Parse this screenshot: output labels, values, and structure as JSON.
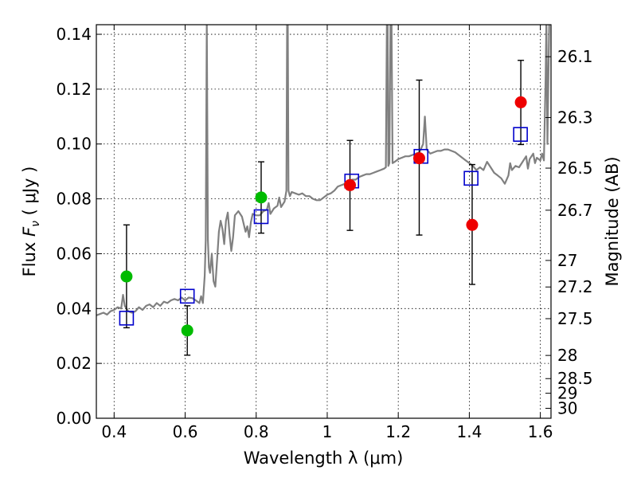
{
  "chart_data": {
    "type": "scatter",
    "title": "",
    "xlabel": "Wavelength  λ (μm)",
    "ylabel_prefix": "Flux  ",
    "ylabel_symbol": "F",
    "ylabel_sub": "ν",
    "ylabel_suffix": "  ( μJy )",
    "ylabel_right": "Magnitude (AB)",
    "xlim": [
      0.35,
      1.63
    ],
    "ylim": [
      0.0,
      0.1435
    ],
    "grid": true,
    "x_ticks": [
      {
        "v": 0.4,
        "label": "0.4"
      },
      {
        "v": 0.6,
        "label": "0.6"
      },
      {
        "v": 0.8,
        "label": "0.8"
      },
      {
        "v": 1.0,
        "label": "1"
      },
      {
        "v": 1.2,
        "label": "1.2"
      },
      {
        "v": 1.4,
        "label": "1.4"
      },
      {
        "v": 1.6,
        "label": "1.6"
      }
    ],
    "y_ticks": [
      {
        "v": 0.0,
        "label": "0.00"
      },
      {
        "v": 0.02,
        "label": "0.02"
      },
      {
        "v": 0.04,
        "label": "0.04"
      },
      {
        "v": 0.06,
        "label": "0.06"
      },
      {
        "v": 0.08,
        "label": "0.08"
      },
      {
        "v": 0.1,
        "label": "0.10"
      },
      {
        "v": 0.12,
        "label": "0.12"
      },
      {
        "v": 0.14,
        "label": "0.14"
      }
    ],
    "mag_ticks": [
      {
        "mag": 26.1,
        "label": "26.1"
      },
      {
        "mag": 26.3,
        "label": "26.3"
      },
      {
        "mag": 26.5,
        "label": "26.5"
      },
      {
        "mag": 26.7,
        "label": "26.7"
      },
      {
        "mag": 27.0,
        "label": "27"
      },
      {
        "mag": 27.2,
        "label": "27.2"
      },
      {
        "mag": 27.5,
        "label": "27.5"
      },
      {
        "mag": 28.0,
        "label": "28"
      },
      {
        "mag": 28.5,
        "label": "28.5"
      },
      {
        "mag": 29.0,
        "label": "29"
      },
      {
        "mag": 30.0,
        "label": "30"
      }
    ],
    "model_spectrum": {
      "color": "#808080",
      "points": [
        [
          0.35,
          0.0375
        ],
        [
          0.36,
          0.038
        ],
        [
          0.37,
          0.0385
        ],
        [
          0.38,
          0.0378
        ],
        [
          0.39,
          0.039
        ],
        [
          0.4,
          0.0395
        ],
        [
          0.41,
          0.0405
        ],
        [
          0.42,
          0.04
        ],
        [
          0.425,
          0.045
        ],
        [
          0.43,
          0.041
        ],
        [
          0.44,
          0.039
        ],
        [
          0.45,
          0.0385
        ],
        [
          0.46,
          0.039
        ],
        [
          0.47,
          0.0405
        ],
        [
          0.48,
          0.0395
        ],
        [
          0.49,
          0.041
        ],
        [
          0.5,
          0.0415
        ],
        [
          0.51,
          0.0405
        ],
        [
          0.52,
          0.042
        ],
        [
          0.53,
          0.041
        ],
        [
          0.54,
          0.0425
        ],
        [
          0.55,
          0.042
        ],
        [
          0.56,
          0.043
        ],
        [
          0.57,
          0.0435
        ],
        [
          0.58,
          0.043
        ],
        [
          0.59,
          0.044
        ],
        [
          0.6,
          0.043
        ],
        [
          0.61,
          0.044
        ],
        [
          0.62,
          0.0438
        ],
        [
          0.63,
          0.043
        ],
        [
          0.64,
          0.042
        ],
        [
          0.645,
          0.0445
        ],
        [
          0.65,
          0.042
        ],
        [
          0.655,
          0.052
        ],
        [
          0.658,
          0.065
        ],
        [
          0.661,
          0.145
        ],
        [
          0.664,
          0.065
        ],
        [
          0.667,
          0.055
        ],
        [
          0.67,
          0.053
        ],
        [
          0.675,
          0.06
        ],
        [
          0.68,
          0.05
        ],
        [
          0.685,
          0.048
        ],
        [
          0.69,
          0.058
        ],
        [
          0.695,
          0.068
        ],
        [
          0.7,
          0.072
        ],
        [
          0.705,
          0.069
        ],
        [
          0.71,
          0.0635
        ],
        [
          0.715,
          0.072
        ],
        [
          0.72,
          0.075
        ],
        [
          0.725,
          0.067
        ],
        [
          0.73,
          0.061
        ],
        [
          0.735,
          0.066
        ],
        [
          0.74,
          0.074
        ],
        [
          0.75,
          0.0755
        ],
        [
          0.76,
          0.0735
        ],
        [
          0.77,
          0.068
        ],
        [
          0.775,
          0.07
        ],
        [
          0.78,
          0.066
        ],
        [
          0.785,
          0.0715
        ],
        [
          0.79,
          0.0745
        ],
        [
          0.8,
          0.074
        ],
        [
          0.81,
          0.074
        ],
        [
          0.82,
          0.0755
        ],
        [
          0.83,
          0.076
        ],
        [
          0.835,
          0.0785
        ],
        [
          0.84,
          0.0745
        ],
        [
          0.85,
          0.0765
        ],
        [
          0.86,
          0.0775
        ],
        [
          0.865,
          0.0805
        ],
        [
          0.87,
          0.077
        ],
        [
          0.88,
          0.079
        ],
        [
          0.885,
          0.083
        ],
        [
          0.887,
          0.145
        ],
        [
          0.889,
          0.145
        ],
        [
          0.891,
          0.083
        ],
        [
          0.895,
          0.081
        ],
        [
          0.9,
          0.0825
        ],
        [
          0.91,
          0.082
        ],
        [
          0.92,
          0.0815
        ],
        [
          0.93,
          0.082
        ],
        [
          0.94,
          0.081
        ],
        [
          0.95,
          0.081
        ],
        [
          0.96,
          0.08
        ],
        [
          0.97,
          0.0795
        ],
        [
          0.98,
          0.0795
        ],
        [
          0.99,
          0.0805
        ],
        [
          1.0,
          0.0815
        ],
        [
          1.01,
          0.082
        ],
        [
          1.02,
          0.083
        ],
        [
          1.03,
          0.0845
        ],
        [
          1.04,
          0.085
        ],
        [
          1.05,
          0.0855
        ],
        [
          1.06,
          0.0865
        ],
        [
          1.07,
          0.087
        ],
        [
          1.08,
          0.087
        ],
        [
          1.09,
          0.088
        ],
        [
          1.1,
          0.0885
        ],
        [
          1.11,
          0.089
        ],
        [
          1.12,
          0.089
        ],
        [
          1.13,
          0.0895
        ],
        [
          1.14,
          0.09
        ],
        [
          1.15,
          0.0905
        ],
        [
          1.16,
          0.091
        ],
        [
          1.165,
          0.0915
        ],
        [
          1.168,
          0.145
        ],
        [
          1.17,
          0.145
        ],
        [
          1.172,
          0.092
        ],
        [
          1.175,
          0.093
        ],
        [
          1.178,
          0.145
        ],
        [
          1.181,
          0.145
        ],
        [
          1.184,
          0.093
        ],
        [
          1.19,
          0.0935
        ],
        [
          1.2,
          0.0945
        ],
        [
          1.21,
          0.095
        ],
        [
          1.22,
          0.0955
        ],
        [
          1.23,
          0.0955
        ],
        [
          1.24,
          0.096
        ],
        [
          1.25,
          0.0965
        ],
        [
          1.26,
          0.097
        ],
        [
          1.27,
          0.1
        ],
        [
          1.275,
          0.11
        ],
        [
          1.28,
          0.098
        ],
        [
          1.29,
          0.0965
        ],
        [
          1.3,
          0.097
        ],
        [
          1.31,
          0.0975
        ],
        [
          1.32,
          0.0975
        ],
        [
          1.33,
          0.098
        ],
        [
          1.34,
          0.098
        ],
        [
          1.35,
          0.0975
        ],
        [
          1.36,
          0.097
        ],
        [
          1.37,
          0.096
        ],
        [
          1.38,
          0.095
        ],
        [
          1.39,
          0.094
        ],
        [
          1.4,
          0.093
        ],
        [
          1.41,
          0.092
        ],
        [
          1.42,
          0.0905
        ],
        [
          1.43,
          0.0915
        ],
        [
          1.44,
          0.0905
        ],
        [
          1.45,
          0.0935
        ],
        [
          1.46,
          0.0915
        ],
        [
          1.47,
          0.0895
        ],
        [
          1.48,
          0.0885
        ],
        [
          1.49,
          0.0875
        ],
        [
          1.5,
          0.0855
        ],
        [
          1.51,
          0.0885
        ],
        [
          1.515,
          0.093
        ],
        [
          1.52,
          0.0905
        ],
        [
          1.53,
          0.092
        ],
        [
          1.54,
          0.0915
        ],
        [
          1.55,
          0.0935
        ],
        [
          1.56,
          0.0955
        ],
        [
          1.565,
          0.091
        ],
        [
          1.57,
          0.0945
        ],
        [
          1.58,
          0.0965
        ],
        [
          1.585,
          0.093
        ],
        [
          1.59,
          0.095
        ],
        [
          1.6,
          0.094
        ],
        [
          1.605,
          0.0965
        ],
        [
          1.61,
          0.094
        ],
        [
          1.615,
          0.125
        ],
        [
          1.617,
          0.145
        ],
        [
          1.62,
          0.1
        ],
        [
          1.625,
          0.145
        ],
        [
          1.63,
          0.145
        ]
      ]
    },
    "model_boxes": {
      "color": "#0000cc",
      "points": [
        {
          "x": 0.435,
          "y": 0.0365
        },
        {
          "x": 0.606,
          "y": 0.0445
        },
        {
          "x": 0.814,
          "y": 0.0735
        },
        {
          "x": 1.069,
          "y": 0.0865
        },
        {
          "x": 1.264,
          "y": 0.0955
        },
        {
          "x": 1.405,
          "y": 0.0875
        },
        {
          "x": 1.544,
          "y": 0.1035
        }
      ]
    },
    "observed_optical": {
      "color": "#00bb00",
      "points": [
        {
          "x": 0.435,
          "y": 0.0517,
          "ylo": 0.033,
          "yhi": 0.0705
        },
        {
          "x": 0.606,
          "y": 0.032,
          "ylo": 0.023,
          "yhi": 0.041
        },
        {
          "x": 0.814,
          "y": 0.0805,
          "ylo": 0.0675,
          "yhi": 0.0935
        }
      ]
    },
    "observed_nir": {
      "color": "#ee0000",
      "points": [
        {
          "x": 1.064,
          "y": 0.085,
          "ylo": 0.0685,
          "yhi": 0.1013
        },
        {
          "x": 1.259,
          "y": 0.0948,
          "ylo": 0.0668,
          "yhi": 0.1233
        },
        {
          "x": 1.408,
          "y": 0.0705,
          "ylo": 0.0488,
          "yhi": 0.0925
        },
        {
          "x": 1.545,
          "y": 0.1152,
          "ylo": 0.0998,
          "yhi": 0.1305
        }
      ]
    }
  }
}
